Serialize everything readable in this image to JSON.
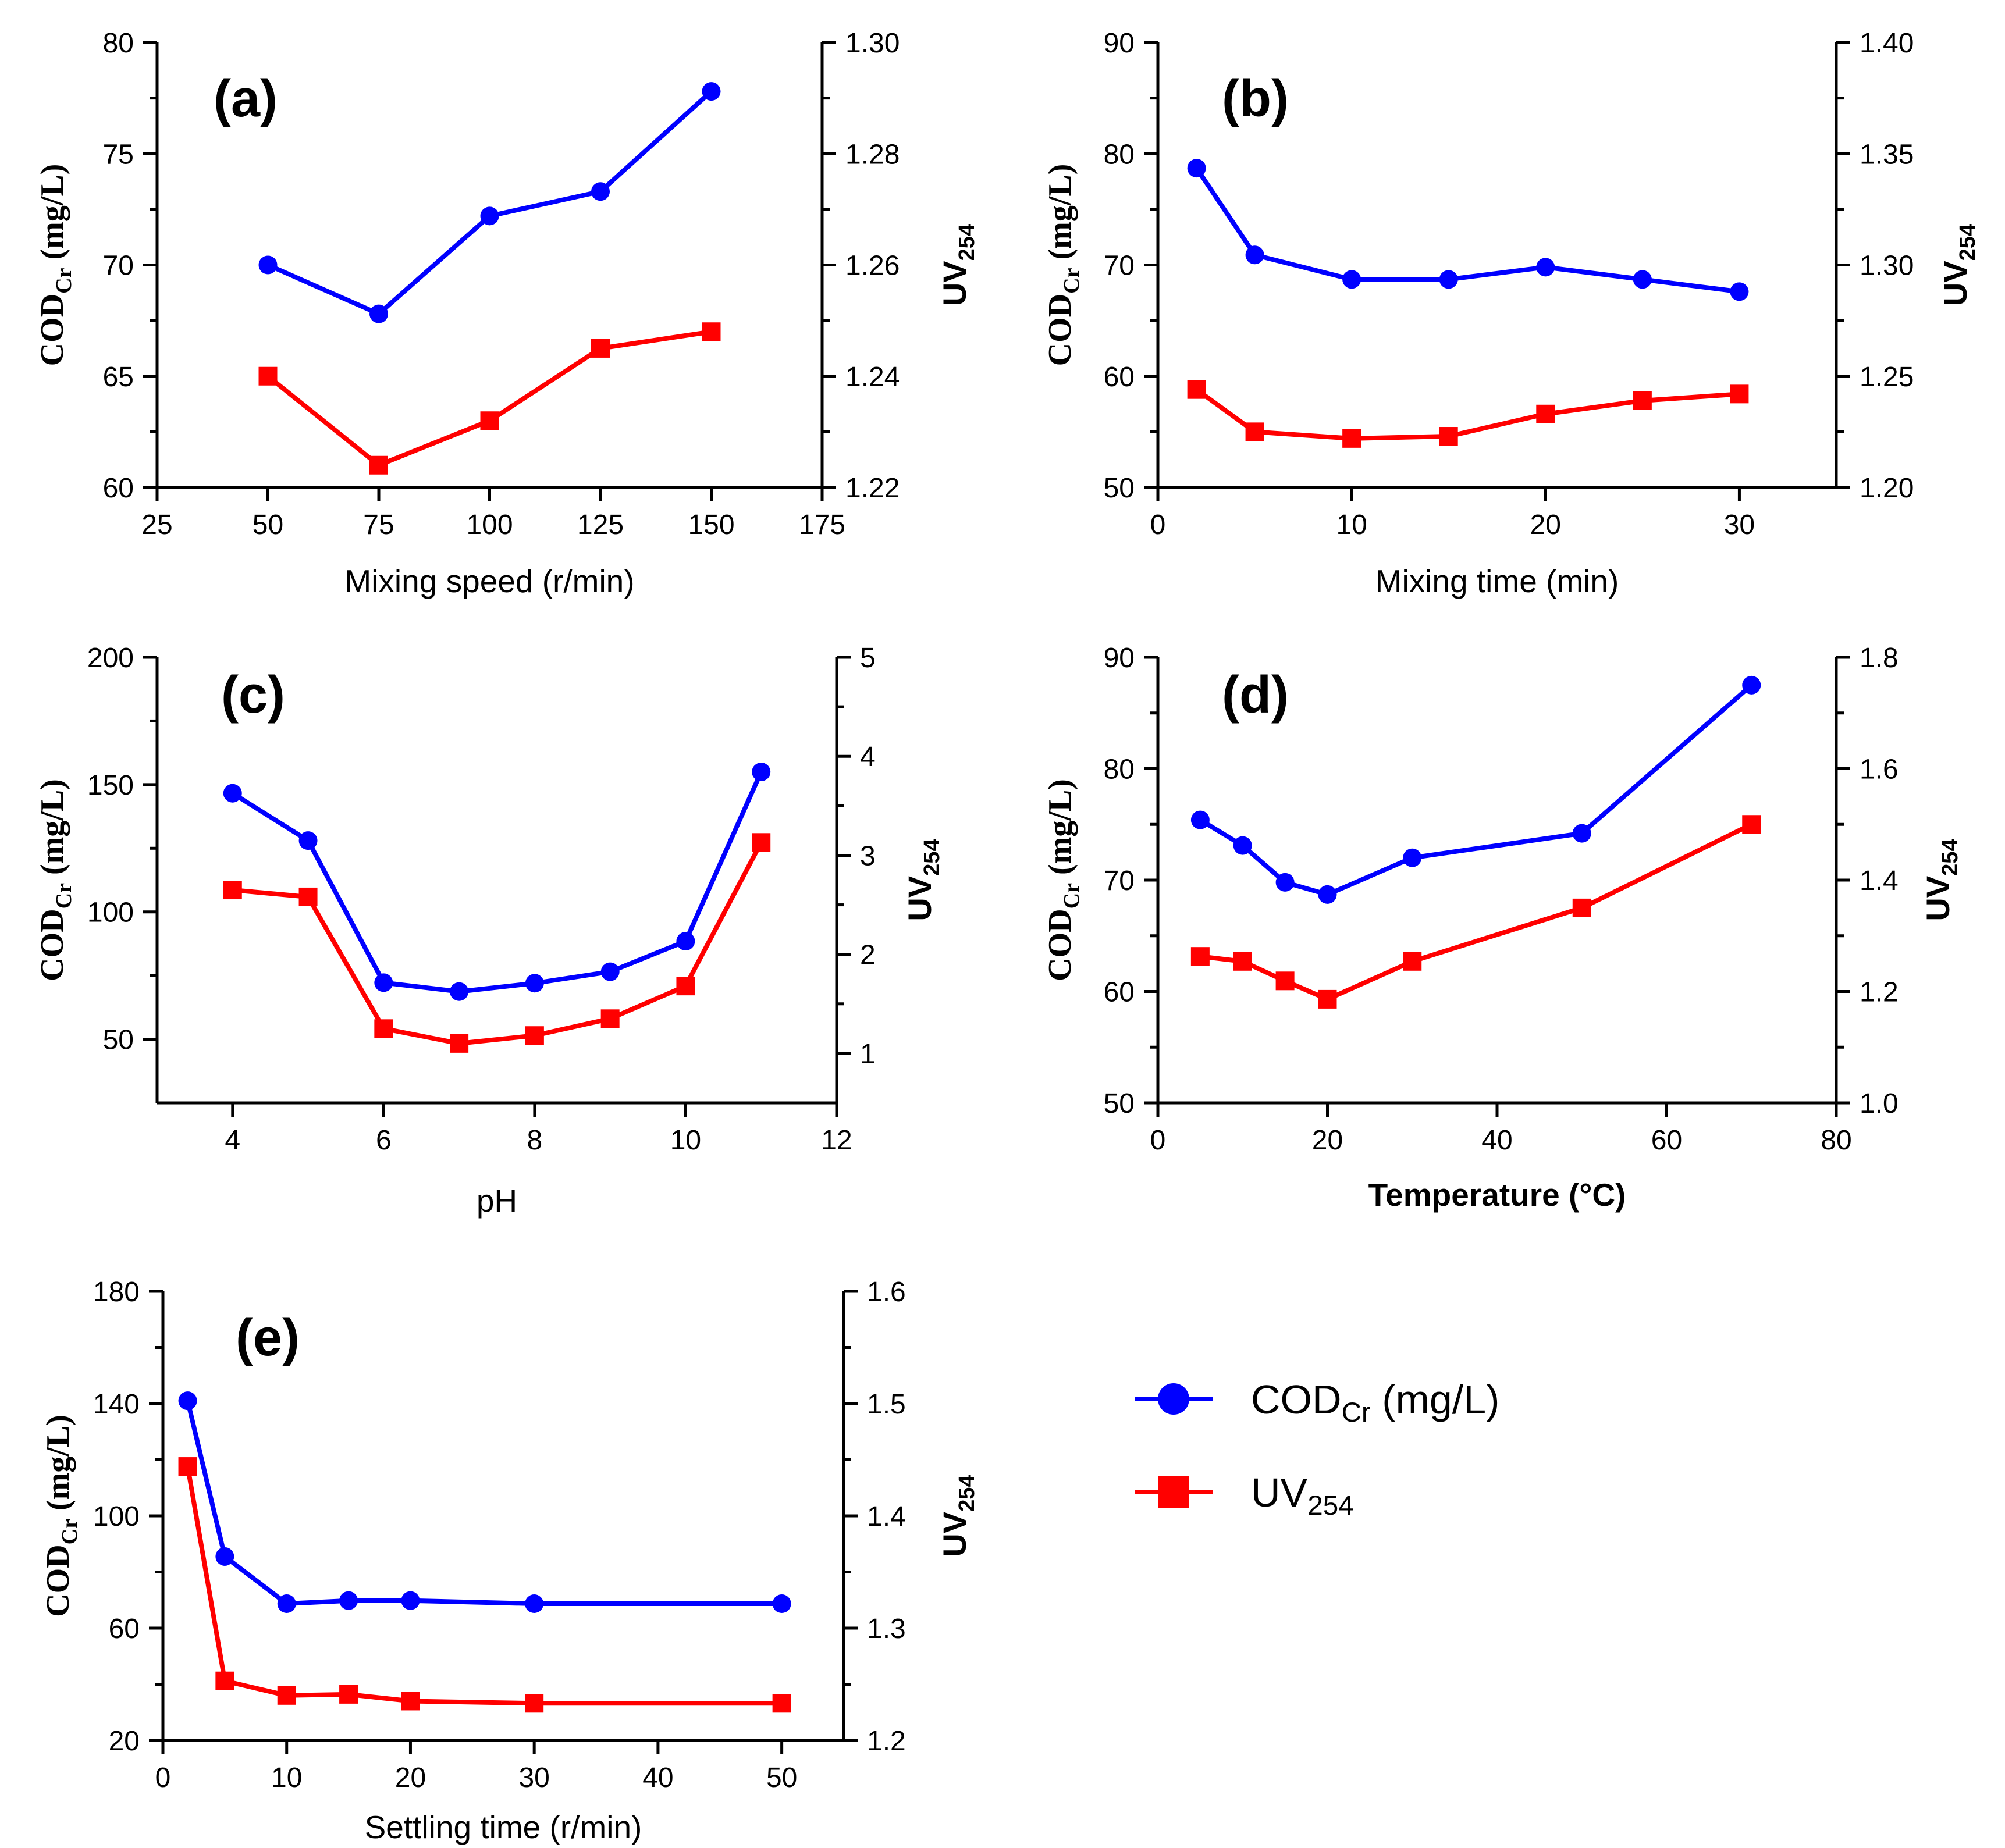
{
  "colors": {
    "cod": "#0000ff",
    "uv": "#ff0000",
    "axis": "#000000"
  },
  "legend": {
    "cod": {
      "main": "COD",
      "sub": "Cr",
      "unit": " (mg/L)"
    },
    "uv": {
      "main": "UV",
      "sub": "254"
    }
  },
  "chart_data": [
    {
      "type": "line",
      "panel": "(a)",
      "xlabel": "Mixing speed (r/min)",
      "xlim": [
        25,
        175
      ],
      "xticks": [
        25,
        50,
        75,
        100,
        125,
        150,
        175
      ],
      "xtick_labels": [
        "25",
        "50",
        "75",
        "100",
        "125",
        "150",
        "175"
      ],
      "ylabel": {
        "main": "COD",
        "sub": "Cr",
        "unit": " (mg/L)"
      },
      "ylim": [
        60,
        80
      ],
      "yticks": [
        60,
        65,
        70,
        75,
        80
      ],
      "ytick_labels": [
        "60",
        "65",
        "70",
        "75",
        "80"
      ],
      "y2label": {
        "main": "UV",
        "sub": "254"
      },
      "y2lim": [
        1.22,
        1.3
      ],
      "y2ticks": [
        1.22,
        1.24,
        1.26,
        1.28,
        1.3
      ],
      "y2tick_labels": [
        "1.22",
        "1.24",
        "1.26",
        "1.28",
        "1.30"
      ],
      "series": [
        {
          "name": "CODCr (mg/L)",
          "axis": "left",
          "marker": "circle",
          "x": [
            50,
            75,
            100,
            125,
            150
          ],
          "values": [
            70.0,
            67.8,
            72.2,
            73.3,
            77.8
          ]
        },
        {
          "name": "UV254",
          "axis": "right",
          "marker": "square",
          "x": [
            50,
            75,
            100,
            125,
            150
          ],
          "values": [
            1.24,
            1.224,
            1.232,
            1.245,
            1.248
          ]
        }
      ]
    },
    {
      "type": "line",
      "panel": "(b)",
      "xlabel": "Mixing time (min)",
      "xlim": [
        0,
        35
      ],
      "xticks": [
        0,
        10,
        20,
        30
      ],
      "xtick_labels": [
        "0",
        "10",
        "20",
        "30"
      ],
      "ylabel": {
        "main": "COD",
        "sub": "Cr",
        "unit": " (mg/L)"
      },
      "ylim": [
        50,
        90
      ],
      "yticks": [
        50,
        60,
        70,
        80,
        90
      ],
      "ytick_labels": [
        "50",
        "60",
        "70",
        "80",
        "90"
      ],
      "y2label": {
        "main": "UV",
        "sub": "254"
      },
      "y2lim": [
        1.2,
        1.4
      ],
      "y2ticks": [
        1.2,
        1.25,
        1.3,
        1.35,
        1.4
      ],
      "y2tick_labels": [
        "1.20",
        "1.25",
        "1.30",
        "1.35",
        "1.40"
      ],
      "series": [
        {
          "name": "CODCr (mg/L)",
          "axis": "left",
          "marker": "circle",
          "x": [
            2,
            5,
            10,
            15,
            20,
            25,
            30
          ],
          "values": [
            78.7,
            70.9,
            68.7,
            68.7,
            69.8,
            68.7,
            67.6
          ]
        },
        {
          "name": "UV254",
          "axis": "right",
          "marker": "square",
          "x": [
            2,
            5,
            10,
            15,
            20,
            25,
            30
          ],
          "values": [
            1.244,
            1.225,
            1.222,
            1.223,
            1.233,
            1.239,
            1.242
          ]
        }
      ]
    },
    {
      "type": "line",
      "panel": "(c)",
      "xlabel": "pH",
      "xlim": [
        3,
        12
      ],
      "xticks": [
        4,
        6,
        8,
        10,
        12
      ],
      "xtick_labels": [
        "4",
        "6",
        "8",
        "10",
        "12"
      ],
      "ylabel": {
        "main": "COD",
        "sub": "Cr",
        "unit": " (mg/L)"
      },
      "ylim": [
        25,
        200
      ],
      "yticks": [
        50,
        100,
        150,
        200
      ],
      "ytick_labels": [
        "50",
        "100",
        "150",
        "200"
      ],
      "y2label": {
        "main": "UV",
        "sub": "254"
      },
      "y2lim": [
        0.5,
        5
      ],
      "y2ticks": [
        1,
        2,
        3,
        4,
        5
      ],
      "y2tick_labels": [
        "1",
        "2",
        "3",
        "4",
        "5"
      ],
      "series": [
        {
          "name": "CODCr (mg/L)",
          "axis": "left",
          "marker": "circle",
          "x": [
            4,
            5,
            6,
            7,
            8,
            9,
            10,
            11
          ],
          "values": [
            146.6,
            128.0,
            72.2,
            68.7,
            72.0,
            76.5,
            88.5,
            155.0
          ]
        },
        {
          "name": "UV254",
          "axis": "right",
          "marker": "square",
          "x": [
            4,
            5,
            6,
            7,
            8,
            9,
            10,
            11
          ],
          "values": [
            2.65,
            2.58,
            1.25,
            1.1,
            1.18,
            1.35,
            1.68,
            3.13
          ]
        }
      ]
    },
    {
      "type": "line",
      "panel": "(d)",
      "xlabel": "Temperature (°C)",
      "xlim": [
        0,
        80
      ],
      "xticks": [
        0,
        20,
        40,
        60,
        80
      ],
      "xtick_labels": [
        "0",
        "20",
        "40",
        "60",
        "80"
      ],
      "ylabel": {
        "main": "COD",
        "sub": "Cr",
        "unit": " (mg/L)"
      },
      "ylim": [
        50,
        90
      ],
      "yticks": [
        50,
        60,
        70,
        80,
        90
      ],
      "ytick_labels": [
        "50",
        "60",
        "70",
        "80",
        "90"
      ],
      "y2label": {
        "main": "UV",
        "sub": "254"
      },
      "y2lim": [
        1.0,
        1.8
      ],
      "y2ticks": [
        1.0,
        1.2,
        1.4,
        1.6,
        1.8
      ],
      "y2tick_labels": [
        "1.0",
        "1.2",
        "1.4",
        "1.6",
        "1.8"
      ],
      "series": [
        {
          "name": "CODCr (mg/L)",
          "axis": "left",
          "marker": "circle",
          "x": [
            5,
            10,
            15,
            20,
            30,
            50,
            70
          ],
          "values": [
            75.4,
            73.1,
            69.8,
            68.7,
            72.0,
            74.2,
            87.5
          ]
        },
        {
          "name": "UV254",
          "axis": "right",
          "marker": "square",
          "x": [
            5,
            10,
            15,
            20,
            30,
            50,
            70
          ],
          "values": [
            1.263,
            1.254,
            1.219,
            1.186,
            1.254,
            1.35,
            1.5
          ]
        }
      ]
    },
    {
      "type": "line",
      "panel": "(e)",
      "xlabel": "Settling time (r/min)",
      "xlim": [
        0,
        55
      ],
      "xticks": [
        0,
        10,
        20,
        30,
        40,
        50
      ],
      "xtick_labels": [
        "0",
        "10",
        "20",
        "30",
        "40",
        "50"
      ],
      "ylabel": {
        "main": "COD",
        "sub": "Cr",
        "unit": " (mg/L)"
      },
      "ylim": [
        20,
        180
      ],
      "yticks": [
        20,
        60,
        100,
        140,
        180
      ],
      "ytick_labels": [
        "20",
        "60",
        "100",
        "140",
        "180"
      ],
      "y2label": {
        "main": "UV",
        "sub": "254"
      },
      "y2lim": [
        1.2,
        1.6
      ],
      "y2ticks": [
        1.2,
        1.3,
        1.4,
        1.5,
        1.6
      ],
      "y2tick_labels": [
        "1.2",
        "1.3",
        "1.4",
        "1.5",
        "1.6"
      ],
      "series": [
        {
          "name": "CODCr (mg/L)",
          "axis": "left",
          "marker": "circle",
          "x": [
            2,
            5,
            10,
            15,
            20,
            30,
            50
          ],
          "values": [
            141,
            85.5,
            68.7,
            69.8,
            69.8,
            68.7,
            68.7
          ]
        },
        {
          "name": "UV254",
          "axis": "right",
          "marker": "square",
          "x": [
            2,
            5,
            10,
            15,
            20,
            30,
            50
          ],
          "values": [
            1.444,
            1.253,
            1.24,
            1.241,
            1.235,
            1.233,
            1.233
          ]
        }
      ]
    }
  ]
}
